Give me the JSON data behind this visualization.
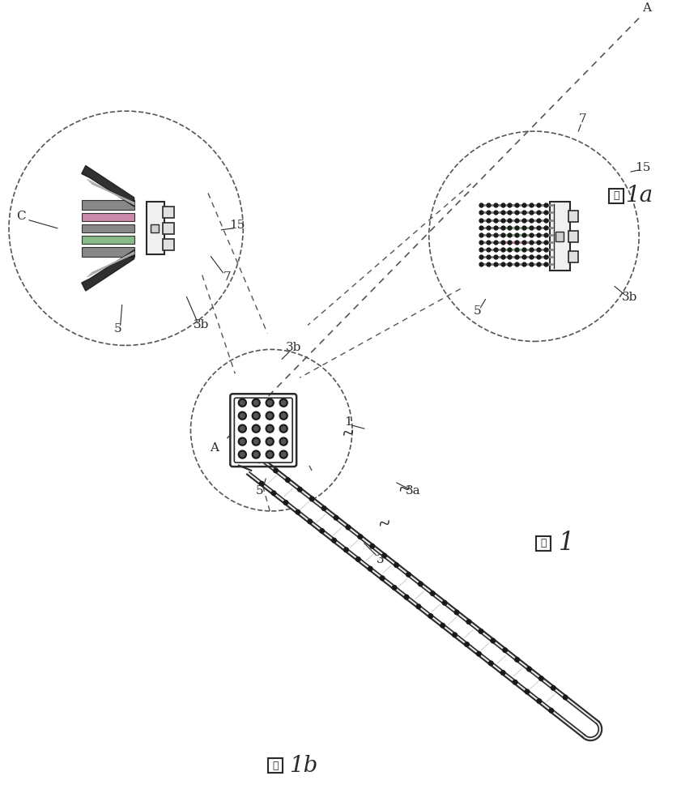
{
  "bg_color": "#ffffff",
  "line_color": "#2a2a2a",
  "fig_width": 8.41,
  "fig_height": 10.0,
  "labels": {
    "fig1": "1",
    "fig1a": "1a",
    "fig1b": "1b",
    "label_A_top": "A",
    "label_A_bottom": "A",
    "label_C": "C",
    "label_1": "1",
    "label_3": "3",
    "label_3a": "3a",
    "label_3b_top": "3b",
    "label_3b_mid": "3b",
    "label_3b_bot": "3b",
    "label_5_top": "5",
    "label_5_mid": "5",
    "label_5_bot": "5",
    "label_7_top": "7",
    "label_7_bot": "7",
    "label_15_top": "15",
    "label_15_bot": "15"
  },
  "colors": {
    "dark": "#1a1a1a",
    "gray": "#888888",
    "light_gray": "#cccccc",
    "green_stripe": "#88bb88",
    "pink_stripe": "#cc88aa",
    "medium_gray": "#aaaaaa",
    "dashed_circle": "#555555"
  }
}
